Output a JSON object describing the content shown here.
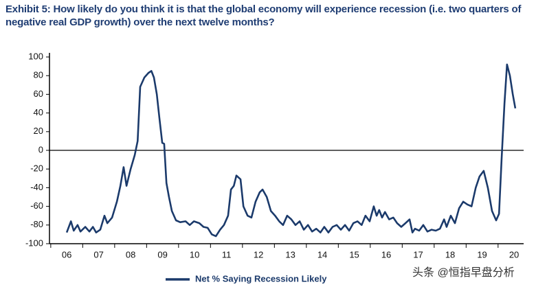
{
  "chart_data": {
    "type": "line",
    "title": "Exhibit 5: How likely do you think it is that the global economy will experience recession (i.e. two quarters of negative real GDP growth) over the next twelve months?",
    "watermark": "头条 @恒指早盘分析",
    "xlim": [
      2005.46,
      2020.3
    ],
    "xticks": [
      {
        "value": 2006,
        "label": "06"
      },
      {
        "value": 2007,
        "label": "07"
      },
      {
        "value": 2008,
        "label": "08"
      },
      {
        "value": 2009,
        "label": "09"
      },
      {
        "value": 2010,
        "label": "10"
      },
      {
        "value": 2011,
        "label": "11"
      },
      {
        "value": 2012,
        "label": "12"
      },
      {
        "value": 2013,
        "label": "13"
      },
      {
        "value": 2014,
        "label": "14"
      },
      {
        "value": 2015,
        "label": "15"
      },
      {
        "value": 2016,
        "label": "16"
      },
      {
        "value": 2017,
        "label": "17"
      },
      {
        "value": 2018,
        "label": "18"
      },
      {
        "value": 2019,
        "label": "19"
      },
      {
        "value": 2020,
        "label": "20"
      }
    ],
    "ylim": [
      -100,
      100
    ],
    "yticks": [
      100,
      80,
      60,
      40,
      20,
      0,
      -20,
      -40,
      -60,
      -80,
      -100
    ],
    "legend": "bottom",
    "series": [
      {
        "name": "Net % Saying Recession Likely",
        "color": "#1b3a6b",
        "x": [
          2006.0,
          2006.13,
          2006.22,
          2006.34,
          2006.43,
          2006.58,
          2006.71,
          2006.82,
          2006.92,
          2007.05,
          2007.18,
          2007.27,
          2007.42,
          2007.57,
          2007.68,
          2007.78,
          2007.87,
          2008.0,
          2008.13,
          2008.22,
          2008.3,
          2008.43,
          2008.56,
          2008.65,
          2008.73,
          2008.82,
          2008.9,
          2008.99,
          2009.05,
          2009.12,
          2009.2,
          2009.29,
          2009.42,
          2009.55,
          2009.72,
          2009.85,
          2009.98,
          2010.15,
          2010.28,
          2010.41,
          2010.54,
          2010.67,
          2010.8,
          2010.92,
          2011.05,
          2011.14,
          2011.23,
          2011.31,
          2011.44,
          2011.53,
          2011.66,
          2011.78,
          2011.91,
          2012.04,
          2012.13,
          2012.26,
          2012.39,
          2012.52,
          2012.65,
          2012.77,
          2012.9,
          2013.03,
          2013.16,
          2013.29,
          2013.42,
          2013.55,
          2013.68,
          2013.81,
          2013.94,
          2014.06,
          2014.19,
          2014.32,
          2014.45,
          2014.58,
          2014.71,
          2014.84,
          2014.97,
          2015.1,
          2015.23,
          2015.35,
          2015.48,
          2015.61,
          2015.7,
          2015.78,
          2015.87,
          2015.96,
          2016.09,
          2016.22,
          2016.34,
          2016.47,
          2016.6,
          2016.73,
          2016.82,
          2016.9,
          2017.03,
          2017.16,
          2017.29,
          2017.42,
          2017.55,
          2017.68,
          2017.81,
          2017.89,
          2018.02,
          2018.15,
          2018.28,
          2018.41,
          2018.54,
          2018.67,
          2018.8,
          2018.92,
          2019.05,
          2019.18,
          2019.31,
          2019.44,
          2019.53,
          2019.61,
          2019.7,
          2019.78,
          2019.87,
          2019.96,
          2020.04
        ],
        "values": [
          -88,
          -76,
          -86,
          -80,
          -87,
          -82,
          -87,
          -82,
          -88,
          -85,
          -70,
          -78,
          -72,
          -55,
          -38,
          -18,
          -38,
          -20,
          -5,
          10,
          68,
          78,
          83,
          85,
          78,
          60,
          35,
          8,
          7,
          -35,
          -50,
          -65,
          -75,
          -77,
          -76,
          -80,
          -76,
          -78,
          -82,
          -83,
          -90,
          -92,
          -85,
          -80,
          -70,
          -42,
          -38,
          -27,
          -31,
          -60,
          -70,
          -72,
          -55,
          -45,
          -42,
          -50,
          -65,
          -70,
          -76,
          -80,
          -70,
          -74,
          -80,
          -76,
          -85,
          -80,
          -87,
          -84,
          -88,
          -82,
          -88,
          -82,
          -80,
          -85,
          -80,
          -86,
          -78,
          -76,
          -80,
          -70,
          -76,
          -60,
          -70,
          -64,
          -72,
          -66,
          -74,
          -72,
          -78,
          -82,
          -78,
          -74,
          -88,
          -84,
          -86,
          -80,
          -87,
          -85,
          -86,
          -84,
          -74,
          -82,
          -70,
          -78,
          -62,
          -55,
          -58,
          -60,
          -40,
          -28,
          -22,
          -40,
          -65,
          -75,
          -68,
          -10,
          50,
          92,
          80,
          60,
          45
        ]
      }
    ]
  }
}
